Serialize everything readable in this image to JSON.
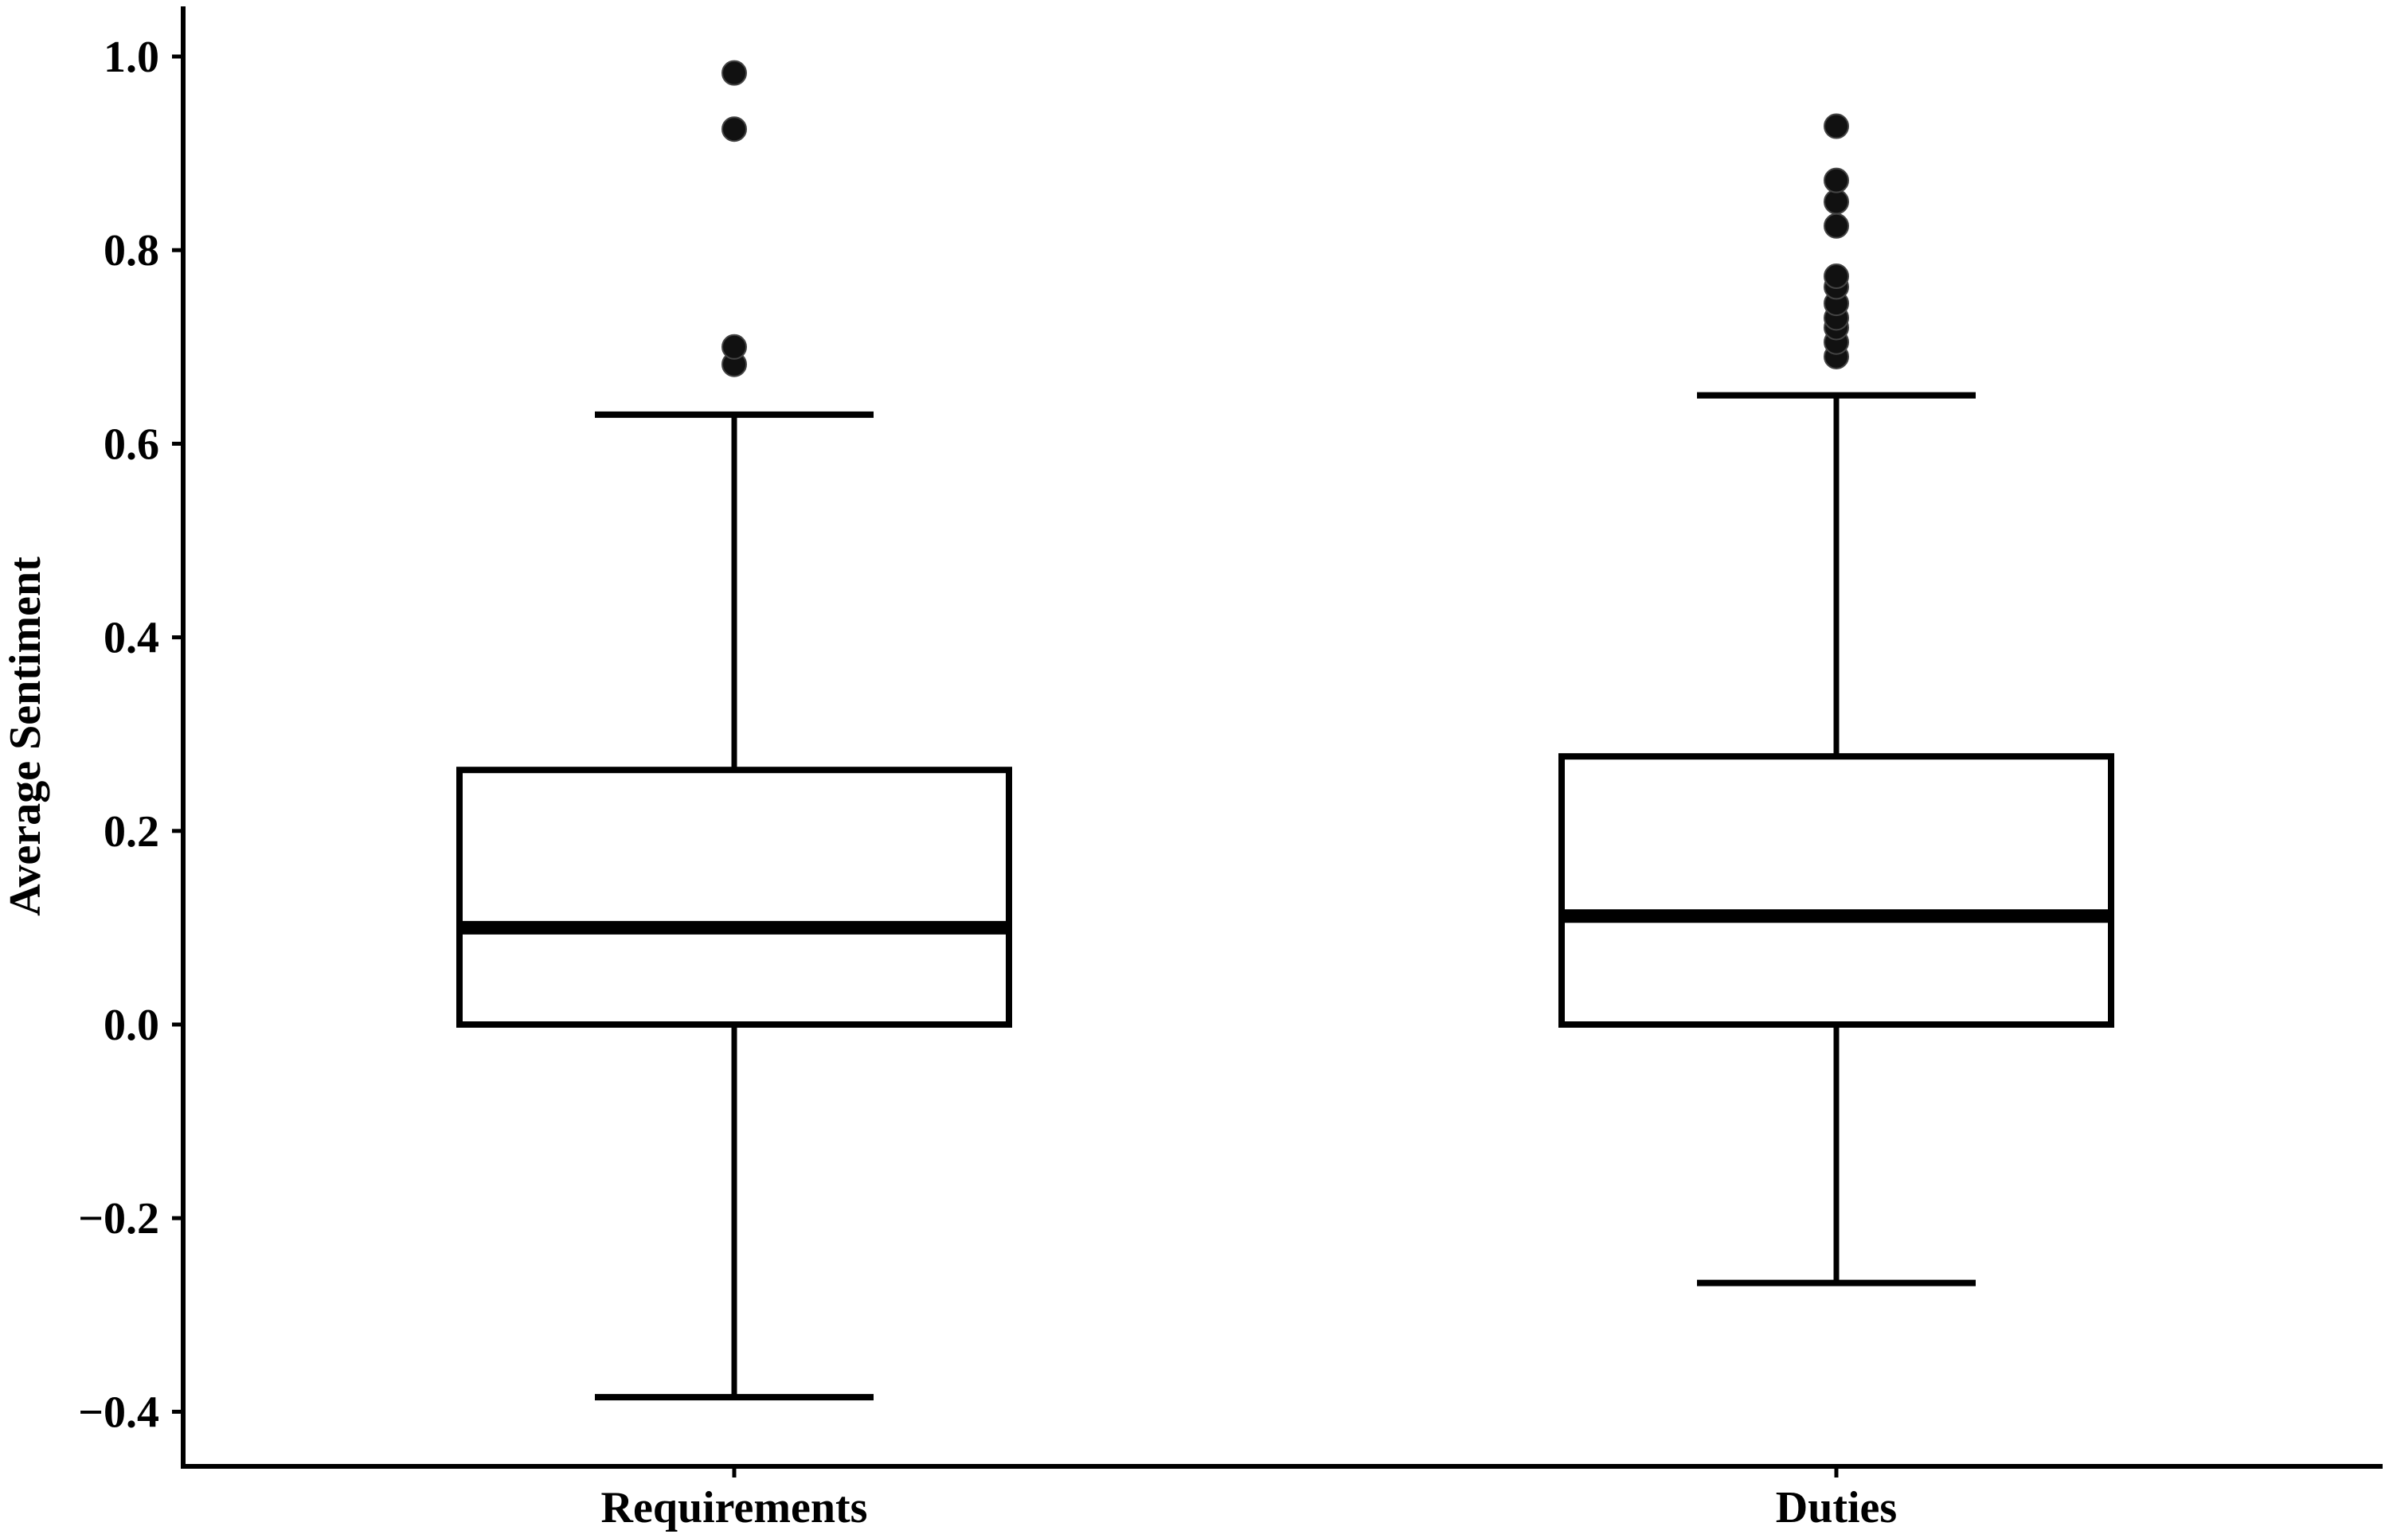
{
  "chart_data": {
    "type": "box",
    "title": "",
    "xlabel": "",
    "ylabel": "Average Sentiment",
    "ylim": [
      -0.45,
      1.05
    ],
    "yticks": [
      -0.4,
      -0.2,
      0.0,
      0.2,
      0.4,
      0.6,
      0.8,
      1.0
    ],
    "ytick_labels": [
      "−0.4",
      "−0.2",
      "0.0",
      "0.2",
      "0.4",
      "0.6",
      "0.8",
      "1.0"
    ],
    "grid": false,
    "legend": "none",
    "categories": [
      "Requirements",
      "Duties"
    ],
    "series": [
      {
        "whisker_low": -0.385,
        "q1": 0.0,
        "median": 0.1,
        "q3": 0.263,
        "whisker_high": 0.63,
        "outliers": [
          0.682,
          0.7,
          0.925,
          0.983
        ]
      },
      {
        "whisker_low": -0.267,
        "q1": 0.0,
        "median": 0.112,
        "q3": 0.277,
        "whisker_high": 0.65,
        "outliers": [
          0.69,
          0.705,
          0.72,
          0.73,
          0.745,
          0.762,
          0.773,
          0.825,
          0.85,
          0.872,
          0.928
        ]
      }
    ],
    "colors": {
      "box_fill": "#ffffff",
      "line": "#000000",
      "outlier": "#111111"
    }
  }
}
